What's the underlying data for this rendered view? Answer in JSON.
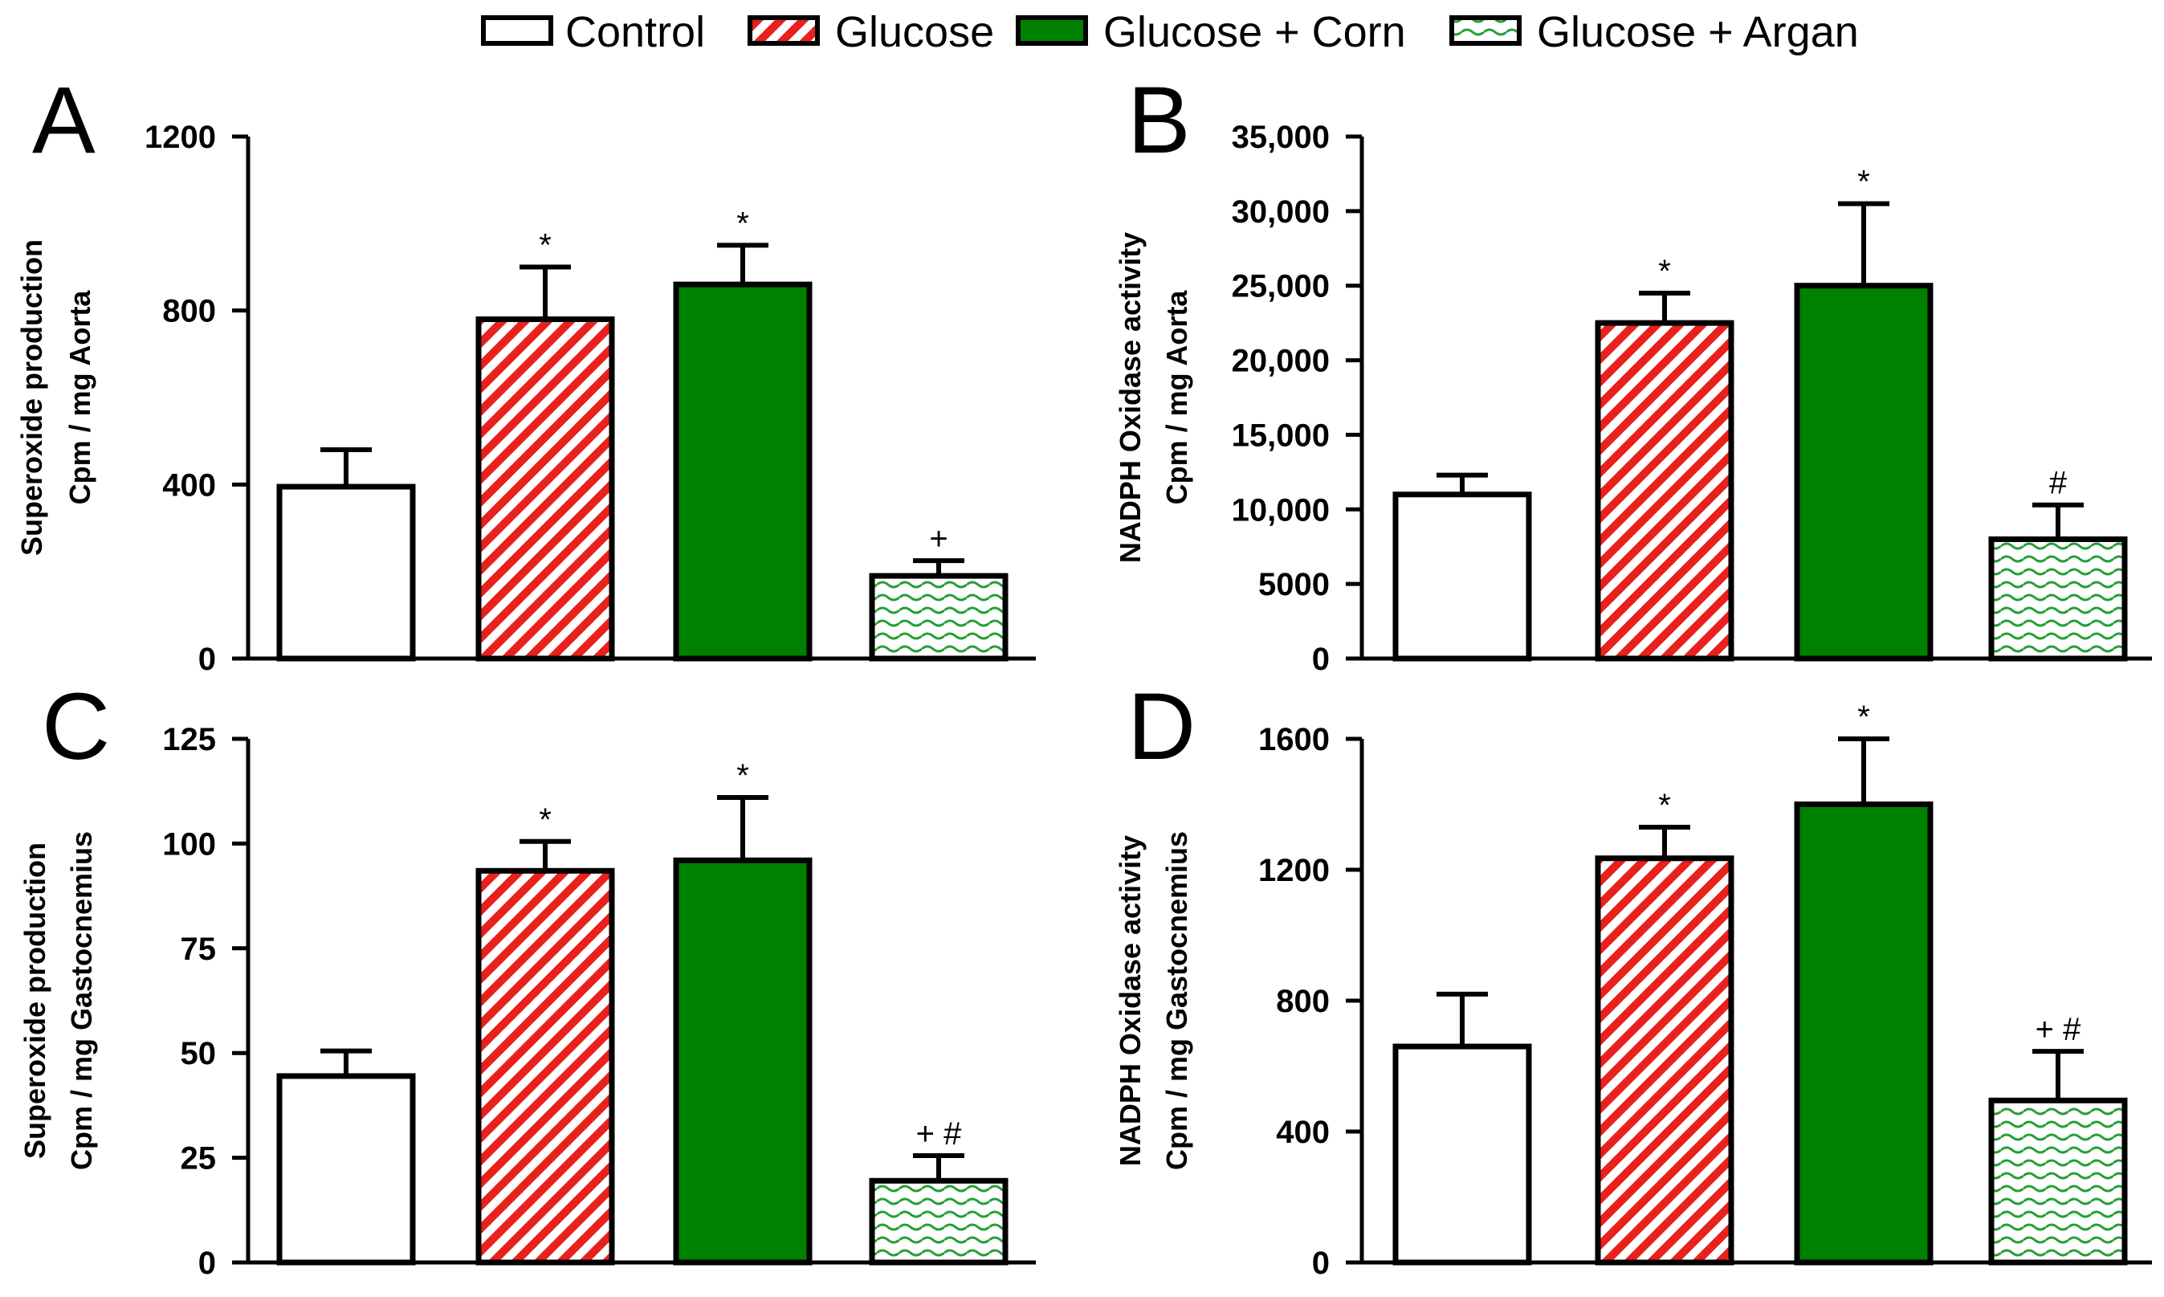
{
  "legend": {
    "items": [
      {
        "label": "Control",
        "pattern": "white"
      },
      {
        "label": "Glucose",
        "pattern": "red-stripes"
      },
      {
        "label": "Glucose + Corn",
        "pattern": "green"
      },
      {
        "label": "Glucose + Argan",
        "pattern": "green-waves"
      }
    ]
  },
  "colors": {
    "red": "#e8211d",
    "green": "#008000",
    "green_wave": "#22a033",
    "outline": "#000000",
    "white": "#ffffff"
  },
  "chart_data": [
    {
      "type": "bar",
      "panel": "A",
      "title": "",
      "ylabel_lines": [
        "Superoxide production",
        "Cpm / mg Aorta"
      ],
      "categories": [
        "Control",
        "Glucose",
        "Glucose + Corn",
        "Glucose + Argan"
      ],
      "values": [
        395,
        780,
        860,
        190
      ],
      "errors": [
        85,
        120,
        90,
        35
      ],
      "annotations": [
        "",
        "*",
        "*",
        "+"
      ],
      "ylim": [
        0,
        1200
      ],
      "yticks": [
        0,
        400,
        800,
        1200
      ],
      "ytick_labels": [
        "0",
        "400",
        "800",
        "1200"
      ]
    },
    {
      "type": "bar",
      "panel": "B",
      "title": "",
      "ylabel_lines": [
        "NADPH Oxidase activity",
        "Cpm / mg Aorta"
      ],
      "categories": [
        "Control",
        "Glucose",
        "Glucose + Corn",
        "Glucose + Argan"
      ],
      "values": [
        11000,
        22500,
        25000,
        8000
      ],
      "errors": [
        1300,
        2000,
        5500,
        2300
      ],
      "annotations": [
        "",
        "*",
        "*",
        "#"
      ],
      "ylim": [
        0,
        35000
      ],
      "yticks": [
        0,
        5000,
        10000,
        15000,
        20000,
        25000,
        30000,
        35000
      ],
      "ytick_labels": [
        "0",
        "5000",
        "10,000",
        "15,000",
        "20,000",
        "25,000",
        "30,000",
        "35,000"
      ]
    },
    {
      "type": "bar",
      "panel": "C",
      "title": "",
      "ylabel_lines": [
        "Superoxide production",
        "Cpm / mg Gastocnemius"
      ],
      "categories": [
        "Control",
        "Glucose",
        "Glucose + Corn",
        "Glucose + Argan"
      ],
      "values": [
        44.5,
        93.5,
        96,
        19.5
      ],
      "errors": [
        6,
        7,
        15,
        6
      ],
      "annotations": [
        "",
        "*",
        "*",
        "+ #"
      ],
      "ylim": [
        0,
        125
      ],
      "yticks": [
        0,
        25,
        50,
        75,
        100,
        125
      ],
      "ytick_labels": [
        "0",
        "25",
        "50",
        "75",
        "100",
        "125"
      ]
    },
    {
      "type": "bar",
      "panel": "D",
      "title": "",
      "ylabel_lines": [
        "NADPH Oxidase activity",
        "Cpm / mg Gastocnemius"
      ],
      "categories": [
        "Control",
        "Glucose",
        "Glucose + Corn",
        "Glucose + Argan"
      ],
      "values": [
        660,
        1235,
        1400,
        495
      ],
      "errors": [
        160,
        95,
        200,
        150
      ],
      "annotations": [
        "",
        "*",
        "*",
        "+ #"
      ],
      "ylim": [
        0,
        1600
      ],
      "yticks": [
        0,
        400,
        800,
        1200,
        1600
      ],
      "ytick_labels": [
        "0",
        "400",
        "800",
        "1200",
        "1600"
      ]
    }
  ]
}
